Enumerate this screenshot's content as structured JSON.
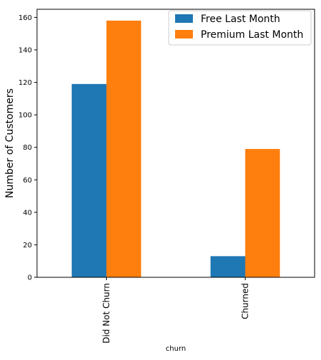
{
  "chart_data": {
    "type": "bar",
    "title": "",
    "xlabel": "churn",
    "ylabel": "Number of Customers",
    "categories": [
      "Did Not Churn",
      "Churned"
    ],
    "series": [
      {
        "name": "Free Last Month",
        "values": [
          119,
          13
        ],
        "color": "#1f77b4"
      },
      {
        "name": "Premium Last Month",
        "values": [
          158,
          79
        ],
        "color": "#ff7f0e"
      }
    ],
    "ylim": [
      0,
      165
    ],
    "yticks": [
      0,
      20,
      40,
      60,
      80,
      100,
      120,
      140,
      160
    ],
    "grid": false,
    "legend_position": "top-right"
  }
}
